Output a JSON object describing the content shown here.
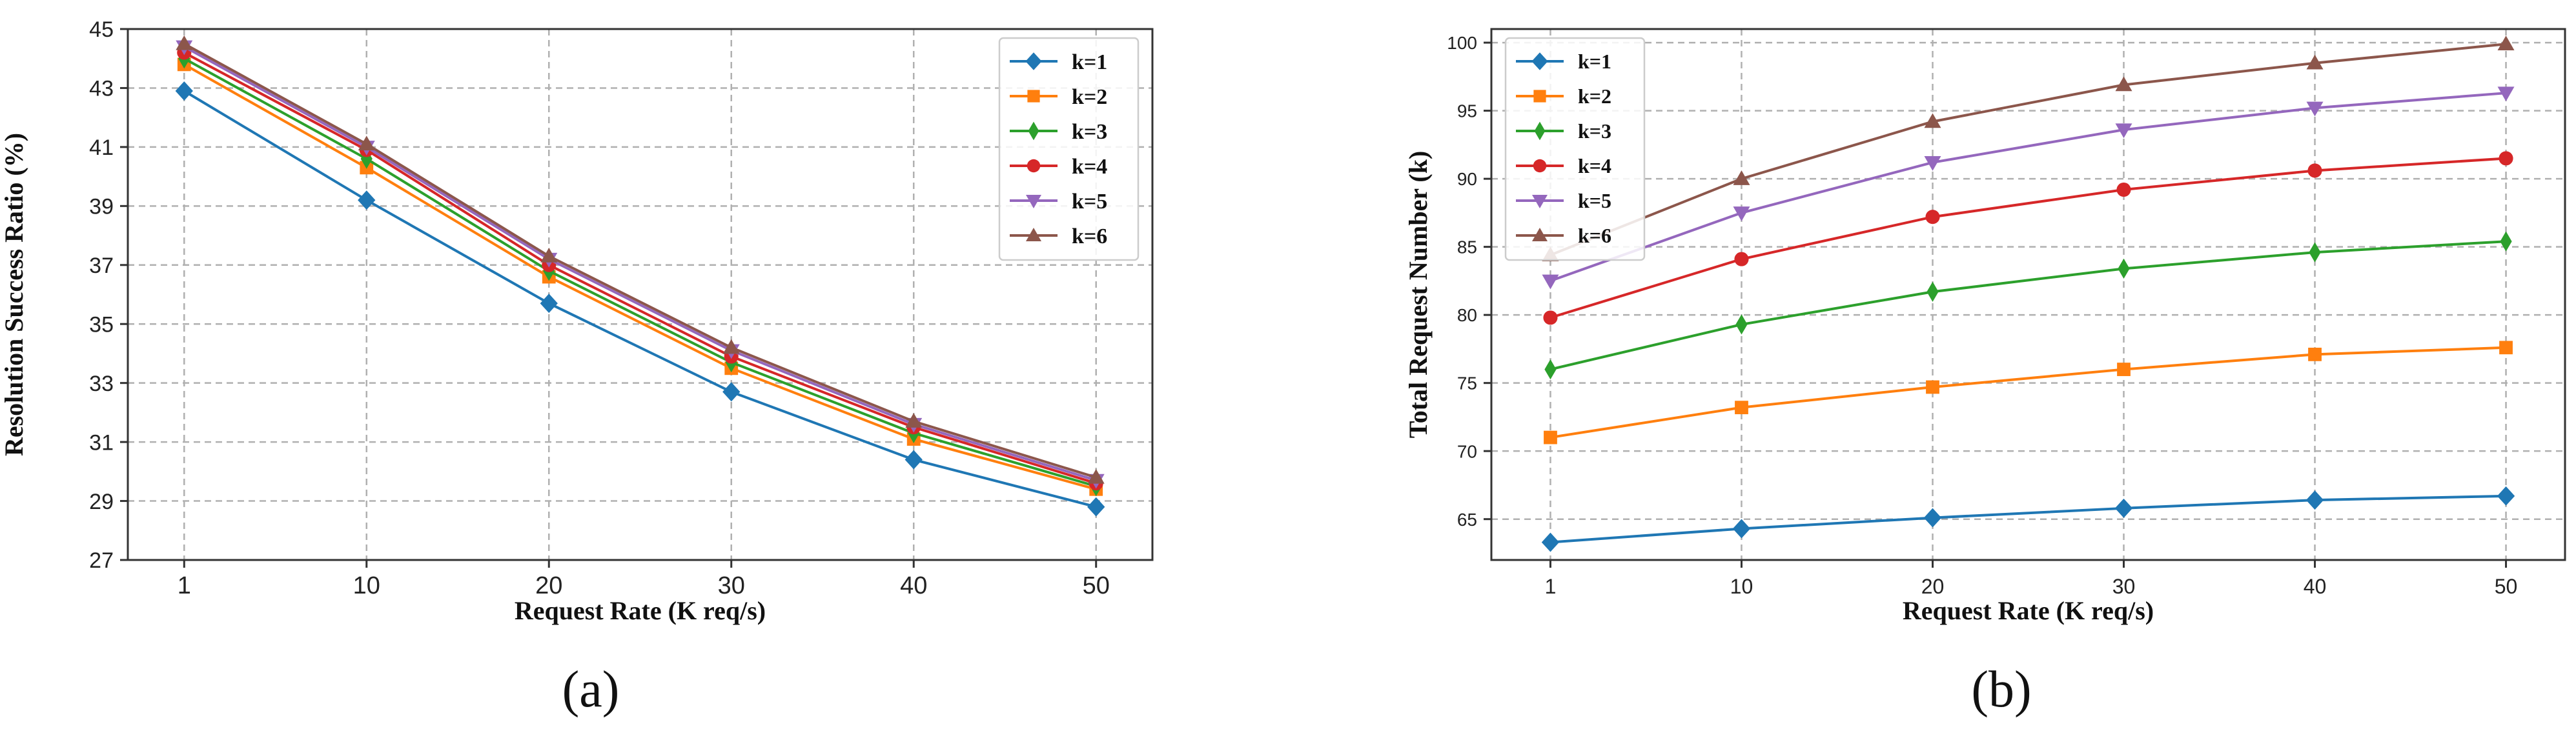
{
  "chart_data": [
    {
      "type": "line",
      "panel_label": "(a)",
      "xlabel": "Request Rate (K req/s)",
      "ylabel": "Resolution Success Ratio (%)",
      "categories": [
        "1",
        "10",
        "20",
        "30",
        "40",
        "50"
      ],
      "ylim": [
        27,
        45
      ],
      "yticks": [
        27,
        29,
        31,
        33,
        35,
        37,
        39,
        41,
        43,
        45
      ],
      "ytick_labels": [
        "27",
        "29",
        "31",
        "33",
        "35",
        "37",
        "39",
        "41",
        "43",
        "45"
      ],
      "grid": true,
      "legend_position": "top-right",
      "series": [
        {
          "name": "k=1",
          "color": "#1f77b4",
          "marker": "diamond",
          "values": [
            42.9,
            39.2,
            35.7,
            32.7,
            30.4,
            28.8
          ]
        },
        {
          "name": "k=2",
          "color": "#ff7f0e",
          "marker": "square",
          "values": [
            43.8,
            40.3,
            36.6,
            33.5,
            31.1,
            29.4
          ]
        },
        {
          "name": "k=3",
          "color": "#2ca02c",
          "marker": "diamond-thin",
          "values": [
            44.0,
            40.6,
            36.8,
            33.7,
            31.3,
            29.5
          ]
        },
        {
          "name": "k=4",
          "color": "#d62728",
          "marker": "circle",
          "values": [
            44.2,
            40.9,
            37.0,
            33.9,
            31.5,
            29.6
          ]
        },
        {
          "name": "k=5",
          "color": "#9467bd",
          "marker": "triangle-down",
          "values": [
            44.4,
            41.0,
            37.2,
            34.1,
            31.6,
            29.7
          ]
        },
        {
          "name": "k=6",
          "color": "#8c564b",
          "marker": "triangle-up",
          "values": [
            44.5,
            41.1,
            37.3,
            34.2,
            31.7,
            29.8
          ]
        }
      ]
    },
    {
      "type": "line",
      "panel_label": "(b)",
      "xlabel": "Request Rate (K req/s)",
      "ylabel": "Total Request Number (k)",
      "categories": [
        "1",
        "10",
        "20",
        "30",
        "40",
        "50"
      ],
      "ylim": [
        62,
        101
      ],
      "yticks": [
        65,
        70,
        75,
        80,
        85,
        90,
        95,
        100
      ],
      "ytick_labels": [
        "65",
        "70",
        "75",
        "80",
        "85",
        "90",
        "95",
        "100"
      ],
      "grid": true,
      "legend_position": "top-left",
      "series": [
        {
          "name": "k=1",
          "color": "#1f77b4",
          "marker": "diamond",
          "values": [
            63.3,
            64.3,
            65.1,
            65.8,
            66.4,
            66.7
          ]
        },
        {
          "name": "k=2",
          "color": "#ff7f0e",
          "marker": "square",
          "values": [
            71.0,
            73.2,
            74.7,
            76.0,
            77.1,
            77.6
          ]
        },
        {
          "name": "k=3",
          "color": "#2ca02c",
          "marker": "diamond-thin",
          "values": [
            76.0,
            79.3,
            81.7,
            83.4,
            84.6,
            85.4
          ]
        },
        {
          "name": "k=4",
          "color": "#d62728",
          "marker": "circle",
          "values": [
            79.8,
            84.1,
            87.2,
            89.2,
            90.6,
            91.5
          ]
        },
        {
          "name": "k=5",
          "color": "#9467bd",
          "marker": "triangle-down",
          "values": [
            82.5,
            87.5,
            91.2,
            93.6,
            95.2,
            96.3
          ]
        },
        {
          "name": "k=6",
          "color": "#8c564b",
          "marker": "triangle-up",
          "values": [
            84.4,
            90.0,
            94.2,
            96.9,
            98.5,
            99.9
          ]
        }
      ]
    }
  ]
}
